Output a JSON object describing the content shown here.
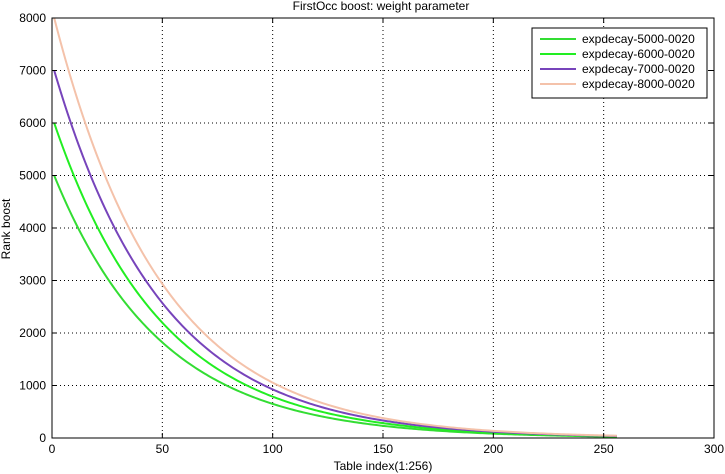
{
  "chart_data": {
    "type": "line",
    "title": "FirstOcc boost: weight parameter",
    "xlabel": "Table index(1:256)",
    "ylabel": "Rank boost",
    "xlim": [
      0,
      300
    ],
    "ylim": [
      0,
      8000
    ],
    "xticks": [
      0,
      50,
      100,
      150,
      200,
      250,
      300
    ],
    "yticks": [
      0,
      1000,
      2000,
      3000,
      4000,
      5000,
      6000,
      7000,
      8000
    ],
    "grid": true,
    "legend_position": "top-right",
    "x_range": [
      1,
      256
    ],
    "series": [
      {
        "name": "expdecay-5000-0020",
        "color": "#33dd33",
        "values_at": {
          "x": [
            1,
            25,
            50,
            75,
            100
          ],
          "y": [
            5000,
            3080,
            1840,
            1100,
            670
          ]
        }
      },
      {
        "name": "expdecay-6000-0020",
        "color": "#22ee22",
        "values_at": {
          "x": [
            1,
            25,
            50,
            75,
            100
          ],
          "y": [
            6000,
            3690,
            2210,
            1320,
            800
          ]
        }
      },
      {
        "name": "expdecay-7000-0020",
        "color": "#7744bb",
        "values_at": {
          "x": [
            1,
            25,
            50,
            75,
            100
          ],
          "y": [
            7000,
            4300,
            2580,
            1540,
            935
          ]
        }
      },
      {
        "name": "expdecay-8000-0020",
        "color": "#f4c2aa",
        "values_at": {
          "x": [
            1,
            25,
            50,
            75,
            100
          ],
          "y": [
            8000,
            4920,
            2950,
            1760,
            1070
          ]
        }
      }
    ]
  }
}
